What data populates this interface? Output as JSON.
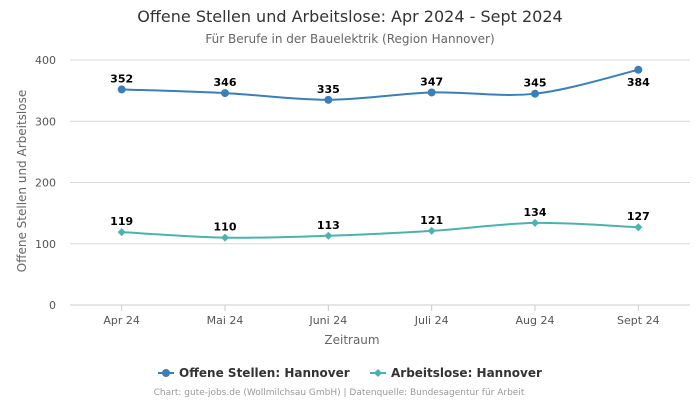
{
  "chart_data": {
    "type": "line",
    "title": "Offene Stellen und Arbeitslose: Apr 2024 - Sept 2024",
    "subtitle": "Für Berufe in der Bauelektrik (Region Hannover)",
    "xlabel": "Zeitraum",
    "ylabel": "Offene Stellen und Arbeitslose",
    "categories": [
      "Apr 24",
      "Mai 24",
      "Juni 24",
      "Juli 24",
      "Aug 24",
      "Sept 24"
    ],
    "ylim": [
      0,
      400
    ],
    "yticks": [
      "0",
      "100",
      "200",
      "300",
      "400"
    ],
    "grid": true,
    "legend_position": "bottom",
    "series": [
      {
        "name": "Offene Stellen: Hannover",
        "values": [
          352,
          346,
          335,
          347,
          345,
          384
        ],
        "color": "#3a7fba",
        "marker": "circle"
      },
      {
        "name": "Arbeitslose: Hannover",
        "values": [
          119,
          110,
          113,
          121,
          134,
          127
        ],
        "color": "#4bb3ad",
        "marker": "diamond"
      }
    ]
  },
  "credits": "Chart: gute-jobs.de (Wollmilchsau GmbH) | Datenquelle: Bundesagentur für Arbeit"
}
